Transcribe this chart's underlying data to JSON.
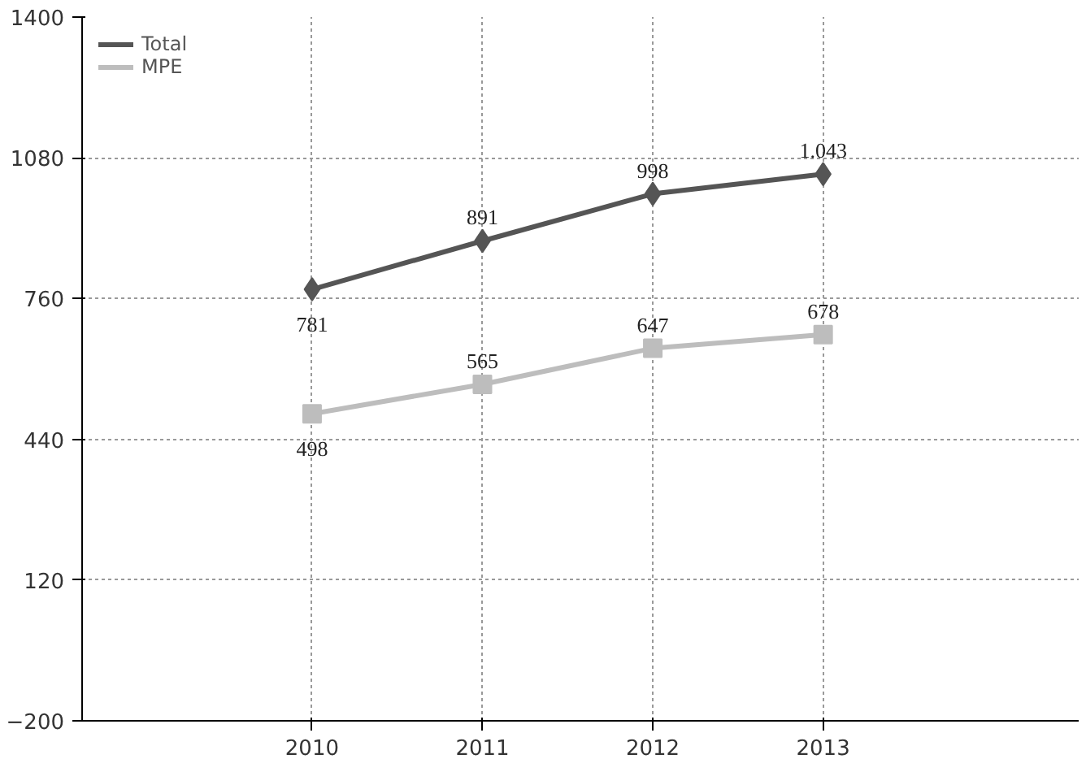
{
  "chart_data": {
    "type": "line",
    "categories": [
      "2010",
      "2011",
      "2012",
      "2013"
    ],
    "series": [
      {
        "name": "Total",
        "color": "#555555",
        "marker": "diamond",
        "values": [
          781,
          891,
          998,
          1043
        ],
        "value_labels": [
          "781",
          "891",
          "998",
          "1.043"
        ]
      },
      {
        "name": "MPE",
        "color": "#bdbdbd",
        "marker": "square",
        "values": [
          498,
          565,
          647,
          678
        ],
        "value_labels": [
          "498",
          "565",
          "647",
          "678"
        ]
      }
    ],
    "ylim": [
      -200,
      1400
    ],
    "yticks": [
      -200,
      120,
      440,
      760,
      1080,
      1400
    ],
    "grid": true,
    "legend": "top left"
  }
}
